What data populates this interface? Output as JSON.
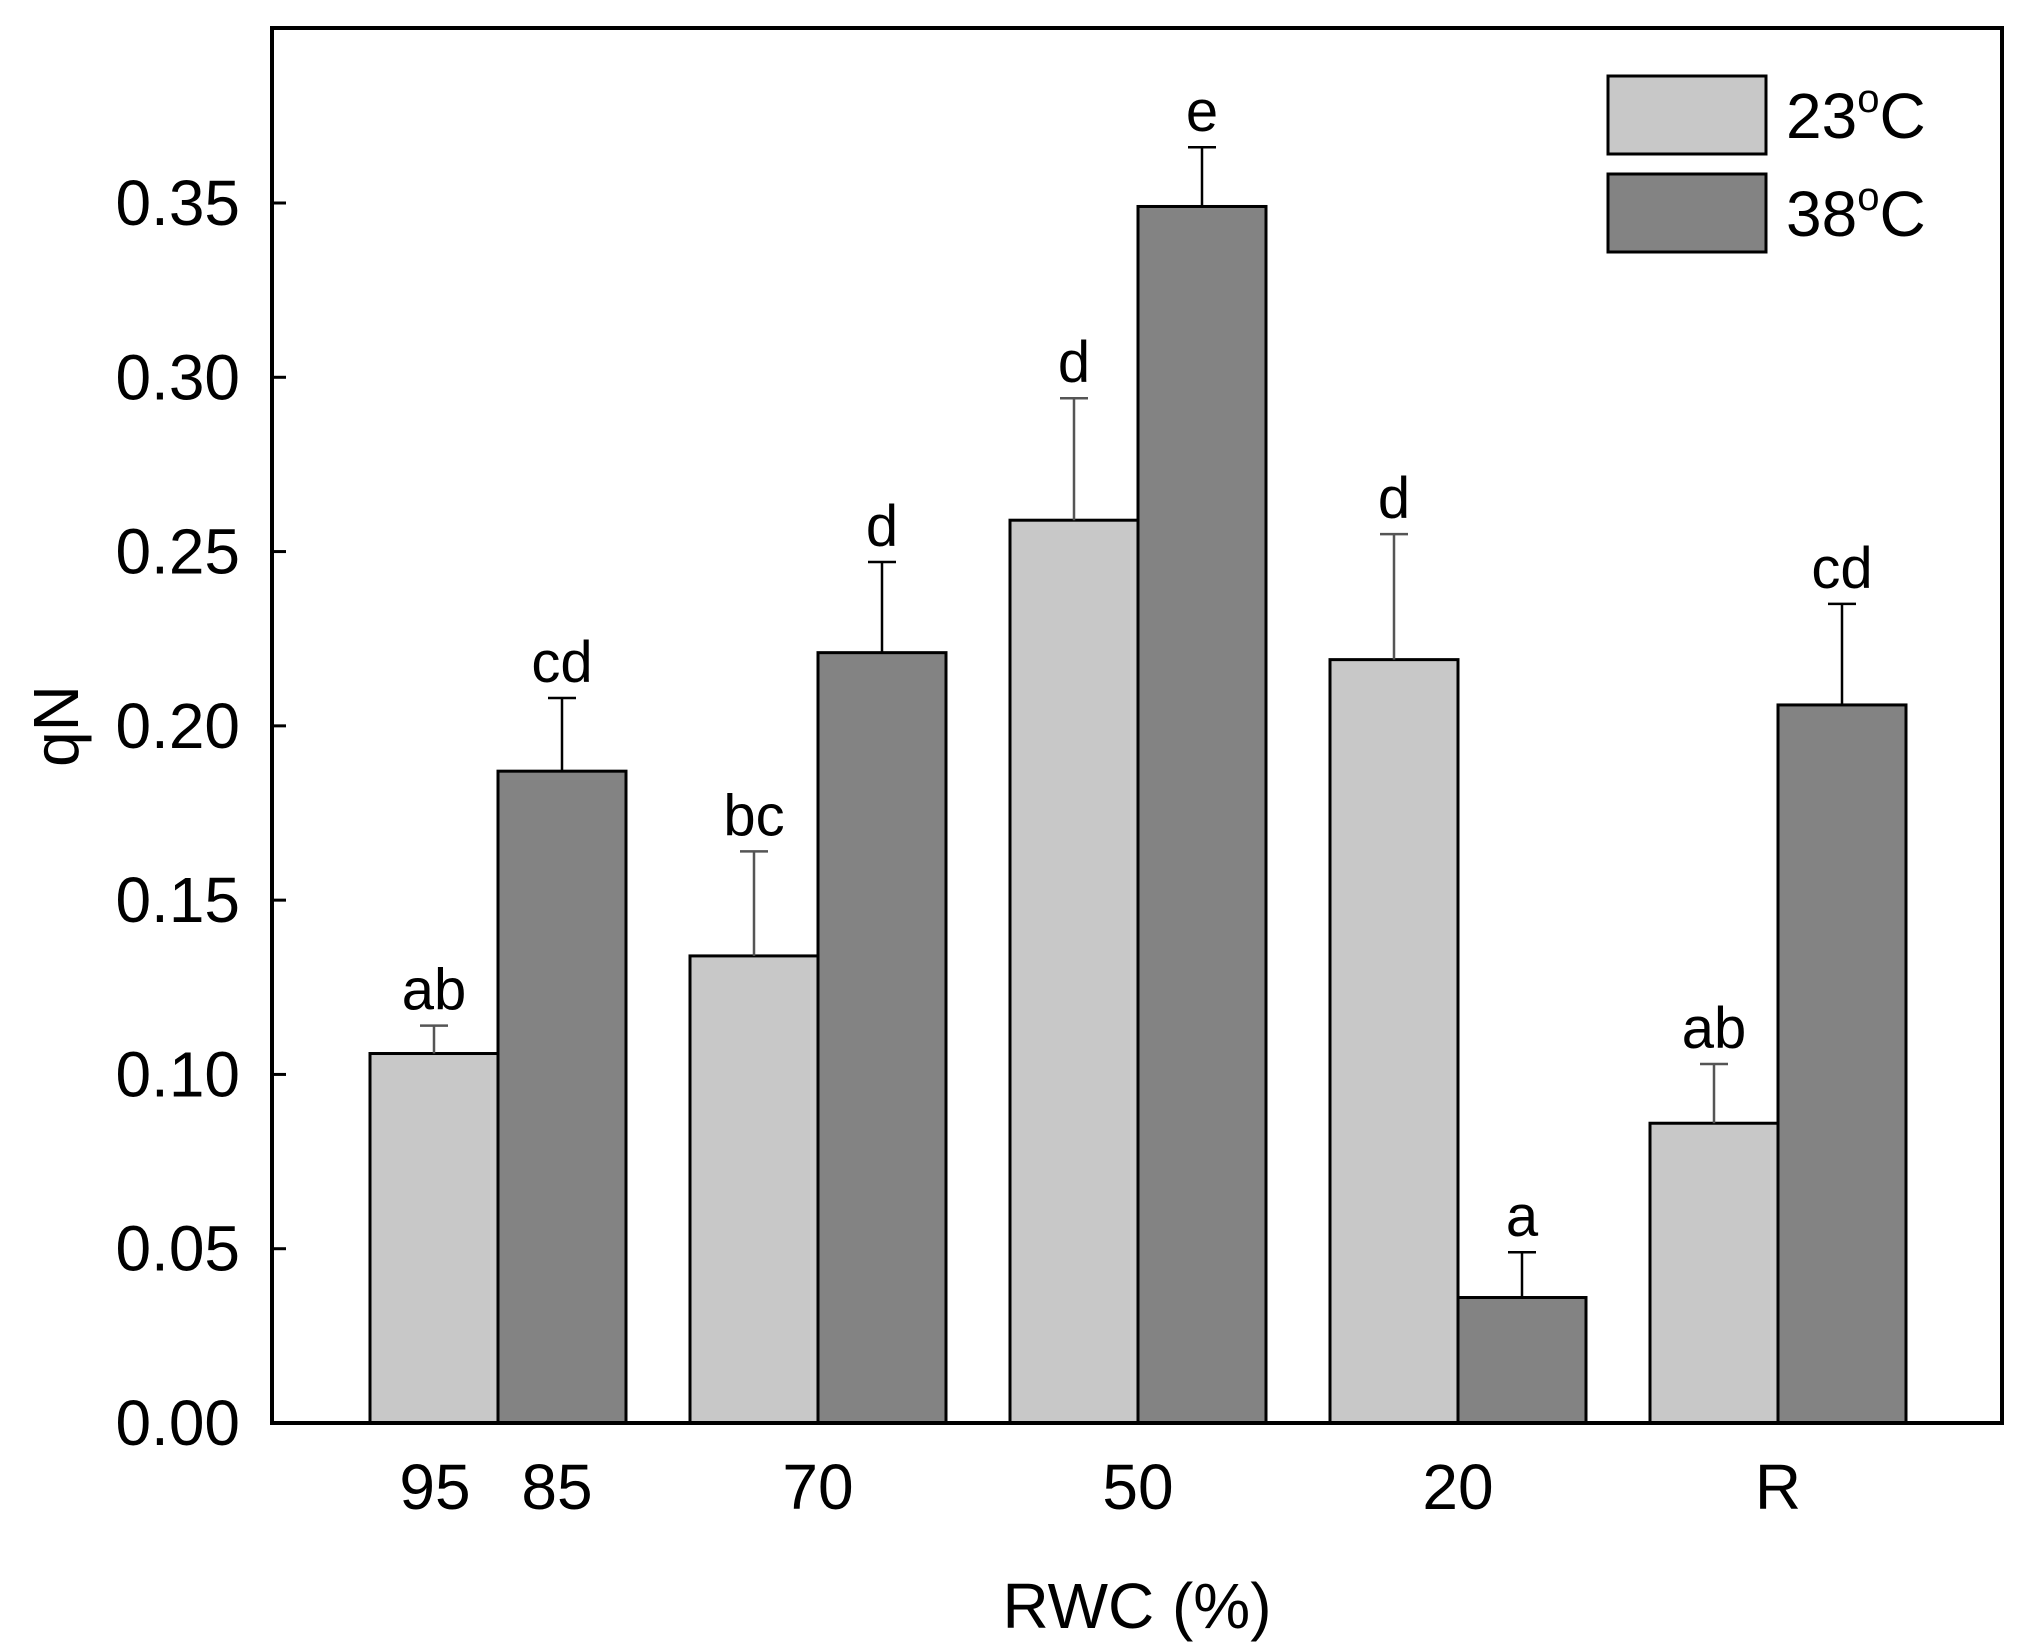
{
  "chart_data": {
    "type": "bar",
    "xlabel": "RWC (%)",
    "ylabel": "qN",
    "ylim": [
      0,
      0.4
    ],
    "ytick_labels": [
      "0.00",
      "0.05",
      "0.10",
      "0.15",
      "0.20",
      "0.25",
      "0.30",
      "0.35"
    ],
    "x_tick_labels": [
      "95",
      "85",
      "70",
      "50",
      "20",
      "R"
    ],
    "bar_groups": [
      "95 / 85",
      "70",
      "50",
      "20",
      "R"
    ],
    "legend_position": "top-right",
    "series": [
      {
        "name": "23°C",
        "label_main": "23",
        "label_sup": "o",
        "label_unit": "C",
        "color": "#c8c8c8",
        "values": [
          0.106,
          0.134,
          0.259,
          0.219,
          0.086
        ],
        "errors": [
          0.008,
          0.03,
          0.035,
          0.036,
          0.017
        ],
        "letters": [
          "ab",
          "bc",
          "d",
          "d",
          "ab"
        ]
      },
      {
        "name": "38°C",
        "label_main": "38",
        "label_sup": "o",
        "label_unit": "C",
        "color": "#838383",
        "values": [
          0.187,
          0.221,
          0.349,
          0.036,
          0.206
        ],
        "errors": [
          0.021,
          0.026,
          0.017,
          0.013,
          0.029
        ],
        "letters": [
          "cd",
          "d",
          "e",
          "a",
          "cd"
        ]
      }
    ]
  }
}
